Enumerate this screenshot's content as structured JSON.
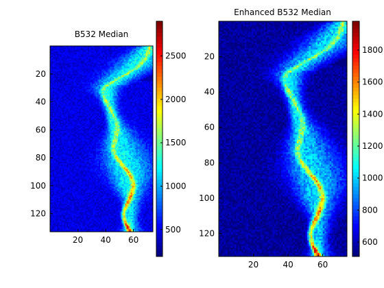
{
  "chart_data": [
    {
      "type": "heatmap",
      "title": "B532 Median",
      "x_range": [
        0,
        74
      ],
      "y_range": [
        0,
        133
      ],
      "y_reversed": true,
      "x_ticks": [
        20,
        40,
        60
      ],
      "y_ticks": [
        20,
        40,
        60,
        80,
        100,
        120
      ],
      "colormap": "jet",
      "color_range": [
        190,
        2900
      ],
      "colorbar_ticks": [
        500,
        1000,
        1500,
        2000,
        2500
      ],
      "background_level": 450,
      "band_peak": 2800,
      "band_center_at_y": [
        [
          0,
          72
        ],
        [
          15,
          60
        ],
        [
          30,
          42
        ],
        [
          50,
          43
        ],
        [
          70,
          48
        ],
        [
          90,
          55
        ],
        [
          110,
          57
        ],
        [
          133,
          57
        ]
      ]
    },
    {
      "type": "heatmap",
      "title": "Enhanced B532 Median",
      "x_range": [
        0,
        74
      ],
      "y_range": [
        0,
        133
      ],
      "y_reversed": true,
      "x_ticks": [
        20,
        40,
        60
      ],
      "y_ticks": [
        20,
        40,
        60,
        80,
        100,
        120
      ],
      "colormap": "jet",
      "color_range": [
        510,
        1980
      ],
      "colorbar_ticks": [
        600,
        800,
        1000,
        1200,
        1400,
        1600,
        1800
      ],
      "background_level": 550,
      "band_peak": 1950,
      "band_center_at_y": [
        [
          0,
          72
        ],
        [
          15,
          60
        ],
        [
          30,
          42
        ],
        [
          50,
          43
        ],
        [
          70,
          48
        ],
        [
          90,
          55
        ],
        [
          110,
          57
        ],
        [
          133,
          57
        ]
      ]
    }
  ]
}
